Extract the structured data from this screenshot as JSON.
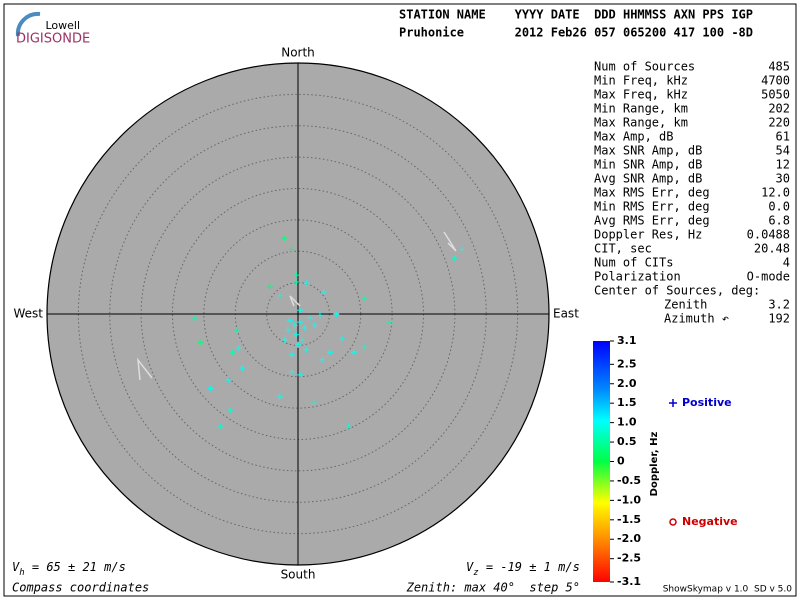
{
  "logo": {
    "top": "Lowell",
    "bottom": "DIGISONDE"
  },
  "header": {
    "line1": "STATION NAME    YYYY DATE  DDD HHMMSS AXN PPS IGP",
    "line2": "Pruhonice       2012 Feb26 057 065200 417 100 -8D"
  },
  "stats": {
    "rows": [
      [
        "Num of Sources",
        "485"
      ],
      [
        "Min Freq, kHz",
        "4700"
      ],
      [
        "Max Freq, kHz",
        "5050"
      ],
      [
        "Min Range, km",
        "202"
      ],
      [
        "Max Range, km",
        "220"
      ],
      [
        "Max Amp, dB",
        "61"
      ],
      [
        "Max SNR Amp, dB",
        "54"
      ],
      [
        "Min SNR Amp, dB",
        "12"
      ],
      [
        "Avg SNR Amp, dB",
        "30"
      ],
      [
        "Max RMS Err, deg",
        "12.0"
      ],
      [
        "Min RMS Err, deg",
        "0.0"
      ],
      [
        "Avg RMS Err, deg",
        "6.8"
      ],
      [
        "Doppler Res, Hz",
        "0.0488"
      ],
      [
        "CIT, sec",
        "20.48"
      ],
      [
        "Num of CITs",
        "4"
      ],
      [
        "Polarization",
        "O-mode"
      ]
    ],
    "center_title": "Center of Sources, deg:",
    "center_rows": [
      [
        "Zenith",
        "3.2"
      ],
      [
        "Azimuth ↶",
        "192"
      ]
    ]
  },
  "footer": {
    "vh": {
      "symbol": "V",
      "sub": "h",
      "text": " = 65 ± 21 m/s"
    },
    "vz": {
      "symbol": "V",
      "sub": "z",
      "text": " = -19 ± 1 m/s"
    },
    "coords": "Compass coordinates",
    "zenith": "Zenith: max 40°  step 5°",
    "version": "ShowSkymap v 1.0  SD v 5.0"
  },
  "chart_data": {
    "type": "polar-scatter",
    "directions": {
      "north": "North",
      "south": "South",
      "west": "West",
      "east": "East"
    },
    "rlim": [
      0,
      40
    ],
    "rticks": [
      5,
      10,
      15,
      20,
      25,
      30,
      35,
      40
    ],
    "colorbar_label": "Doppler, Hz",
    "clim": [
      -3.1,
      3.1
    ],
    "cticks": [
      3.1,
      2.5,
      {
        "value": 2,
        "label": "2.0"
      },
      1.5,
      {
        "value": 1,
        "label": "1.0"
      },
      0.5,
      0,
      -0.5,
      {
        "value": -1,
        "label": "-1.0"
      },
      -1.5,
      {
        "value": -2,
        "label": "-2.0"
      },
      -2.5,
      -3.1
    ],
    "series": [
      {
        "name": "Positive",
        "color": "#0000cc",
        "x": [
          -2.2,
          -1.0,
          -0.2,
          -0.3,
          -4.5,
          -2.9,
          1.4,
          4.1,
          10.5,
          6.1,
          14.6,
          -16.4,
          -9.7,
          -15.6,
          -9.4,
          -10.4,
          -8.9,
          -11.0,
          -13.9,
          -10.7,
          -12.3,
          -2.9,
          2.5,
          8.0,
          7.0,
          8.9,
          10.5,
          5.1,
          3.8,
          -1.0,
          0.3,
          26.1,
          25.0,
          -1.3,
          -0.5,
          0.3,
          1.1,
          1.9,
          -0.3,
          0.6,
          -1.6,
          2.7,
          0,
          1.3,
          -1.0,
          -2.1,
          3.5,
          0.3
        ],
        "y": [
          12.1,
          10.3,
          6.2,
          5.1,
          4.3,
          2.9,
          4.9,
          3.5,
          2.4,
          0,
          -1.3,
          -0.8,
          -2.7,
          -4.5,
          -5.4,
          -6.2,
          -8.6,
          -10.5,
          -11.9,
          -15.3,
          -18.0,
          -13.2,
          -14.2,
          -17.8,
          -4.0,
          -6.1,
          -5.3,
          -6.1,
          -7.3,
          -9.2,
          -9.7,
          10.3,
          8.9,
          -1.0,
          -1.8,
          -1.3,
          -2.2,
          -0.6,
          -3.3,
          -4.1,
          -2.5,
          -1.8,
          -4.9,
          -5.7,
          -6.5,
          -4.1,
          -0.2,
          0.6
        ],
        "doppler": [
          0.3,
          0.3,
          0.5,
          0.6,
          0.3,
          0.8,
          1.0,
          1.0,
          0.6,
          1.0,
          0.6,
          0.6,
          0.6,
          0.3,
          1.0,
          0.6,
          1.0,
          1.0,
          1.0,
          0.8,
          0.8,
          1.0,
          0.8,
          0.8,
          1.0,
          1.0,
          0.8,
          1.0,
          1.0,
          1.0,
          1.0,
          1.0,
          0.8,
          1.0,
          1.0,
          1.0,
          1.0,
          1.0,
          1.0,
          1.0,
          1.0,
          1.0,
          1.0,
          1.0,
          1.0,
          1.0,
          1.0,
          1.0
        ]
      },
      {
        "name": "Negative",
        "color": "#cc0000",
        "x": [],
        "y": [],
        "doppler": []
      }
    ]
  }
}
